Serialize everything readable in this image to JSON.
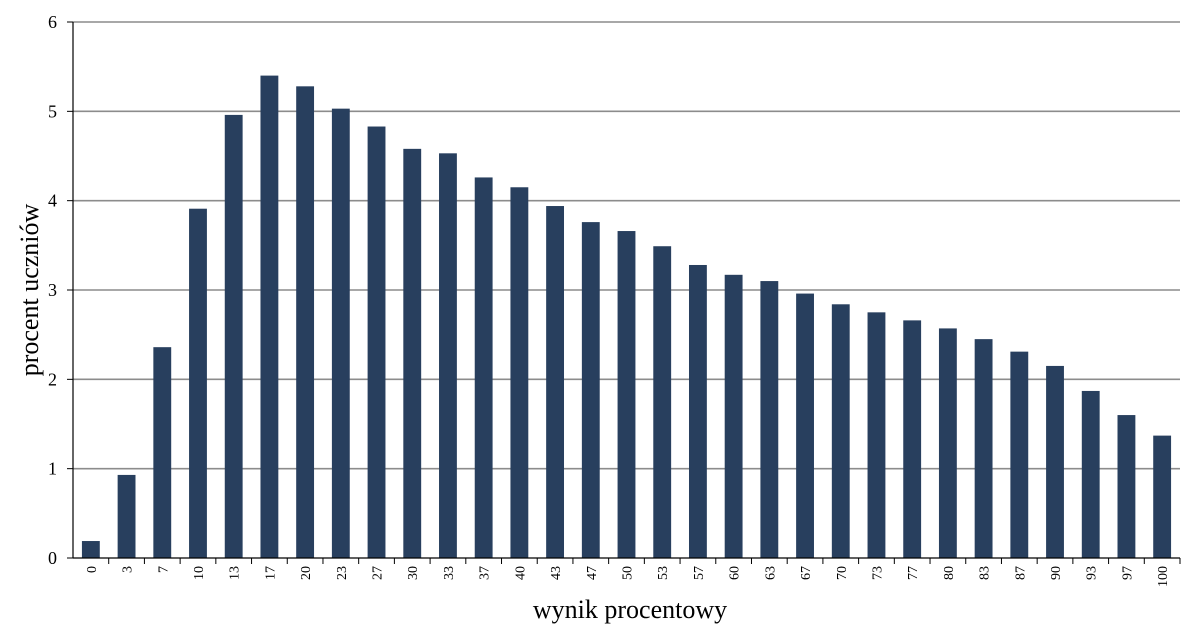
{
  "chart_data": {
    "type": "bar",
    "title": "",
    "xlabel": "wynik procentowy",
    "ylabel": "procent uczniów",
    "ylim": [
      0,
      6
    ],
    "yticks": [
      0,
      1,
      2,
      3,
      4,
      5,
      6
    ],
    "grid": "horizontal",
    "legend": "none",
    "bar_color": "#283F5E",
    "categories": [
      "0",
      "3",
      "7",
      "10",
      "13",
      "17",
      "20",
      "23",
      "27",
      "30",
      "33",
      "37",
      "40",
      "43",
      "47",
      "50",
      "53",
      "57",
      "60",
      "63",
      "67",
      "70",
      "73",
      "77",
      "80",
      "83",
      "87",
      "90",
      "93",
      "97",
      "100"
    ],
    "values": [
      0.19,
      0.93,
      2.36,
      3.91,
      4.96,
      5.4,
      5.28,
      5.03,
      4.83,
      4.58,
      4.53,
      4.26,
      4.15,
      3.94,
      3.76,
      3.66,
      3.49,
      3.28,
      3.17,
      3.1,
      2.96,
      2.84,
      2.75,
      2.66,
      2.57,
      2.45,
      2.31,
      2.15,
      1.87,
      1.6,
      1.37
    ]
  }
}
